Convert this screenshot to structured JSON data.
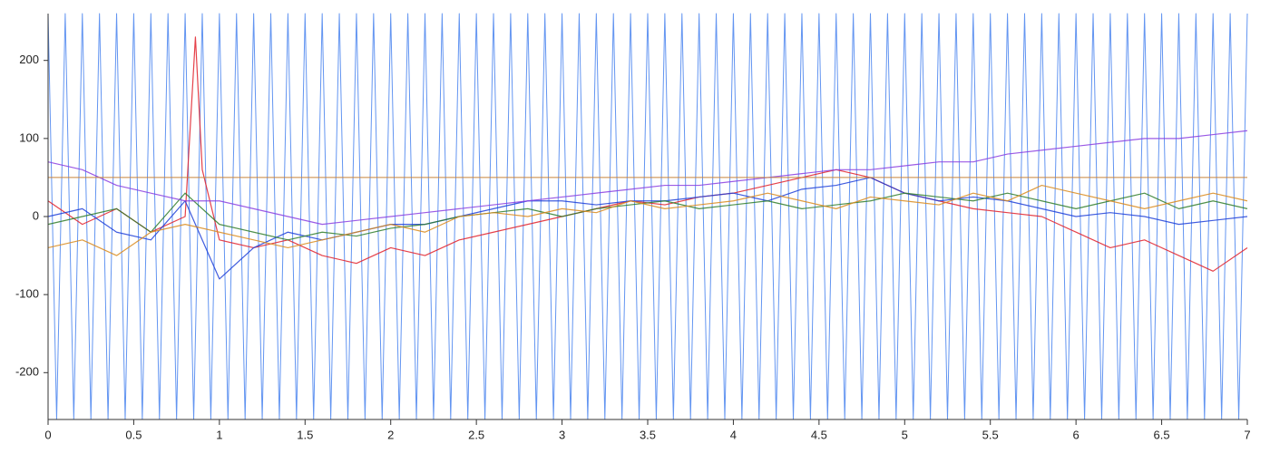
{
  "chart_data": {
    "type": "line",
    "xlim": [
      0,
      7
    ],
    "ylim": [
      -260,
      260
    ],
    "xticks": [
      0,
      0.5,
      1,
      1.5,
      2,
      2.5,
      3,
      3.5,
      4,
      4.5,
      5,
      5.5,
      6,
      6.5,
      7
    ],
    "yticks": [
      -200,
      -100,
      0,
      100,
      200
    ],
    "reference_line": {
      "value": 50,
      "color": "#c8843c"
    },
    "series": [
      {
        "color": "#5b8ff0",
        "x": [
          0,
          0.05,
          0.1,
          0.15,
          0.2,
          0.25,
          0.3,
          0.35,
          0.4,
          0.45,
          0.5,
          0.55,
          0.6,
          0.65,
          0.7,
          0.75,
          0.8,
          0.85,
          0.9,
          0.95,
          1,
          1.05,
          1.1,
          1.15,
          1.2,
          1.25,
          1.3,
          1.35,
          1.4,
          1.45,
          1.5,
          1.55,
          1.6,
          1.65,
          1.7,
          1.75,
          1.8,
          1.85,
          1.9,
          1.95,
          2,
          2.05,
          2.1,
          2.15,
          2.2,
          2.25,
          2.3,
          2.35,
          2.4,
          2.45,
          2.5,
          2.55,
          2.6,
          2.65,
          2.7,
          2.75,
          2.8,
          2.85,
          2.9,
          2.95,
          3,
          3.05,
          3.1,
          3.15,
          3.2,
          3.25,
          3.3,
          3.35,
          3.4,
          3.45,
          3.5,
          3.55,
          3.6,
          3.65,
          3.7,
          3.75,
          3.8,
          3.85,
          3.9,
          3.95,
          4,
          4.05,
          4.1,
          4.15,
          4.2,
          4.25,
          4.3,
          4.35,
          4.4,
          4.45,
          4.5,
          4.55,
          4.6,
          4.65,
          4.7,
          4.75,
          4.8,
          4.85,
          4.9,
          4.95,
          5,
          5.05,
          5.1,
          5.15,
          5.2,
          5.25,
          5.3,
          5.35,
          5.4,
          5.45,
          5.5,
          5.55,
          5.6,
          5.65,
          5.7,
          5.75,
          5.8,
          5.85,
          5.9,
          5.95,
          6,
          6.05,
          6.1,
          6.15,
          6.2,
          6.25,
          6.3,
          6.35,
          6.4,
          6.45,
          6.5,
          6.55,
          6.6,
          6.65,
          6.7,
          6.75,
          6.8,
          6.85,
          6.9,
          6.95,
          7
        ],
        "values": [
          260,
          -260,
          260,
          -260,
          260,
          -260,
          260,
          -260,
          260,
          -260,
          260,
          -260,
          260,
          -260,
          260,
          -260,
          260,
          -260,
          260,
          -260,
          260,
          -260,
          260,
          -260,
          260,
          -260,
          260,
          -260,
          260,
          -260,
          260,
          -260,
          260,
          -260,
          260,
          -260,
          260,
          -260,
          260,
          -260,
          260,
          -260,
          260,
          -260,
          260,
          -260,
          260,
          -260,
          260,
          -260,
          260,
          -260,
          260,
          -260,
          260,
          -260,
          260,
          -260,
          260,
          -260,
          260,
          -260,
          260,
          -260,
          260,
          -260,
          260,
          -260,
          260,
          -260,
          260,
          -260,
          260,
          -260,
          260,
          -260,
          260,
          -260,
          260,
          -260,
          260,
          -260,
          260,
          -260,
          260,
          -260,
          260,
          -260,
          260,
          -260,
          260,
          -260,
          260,
          -260,
          260,
          -260,
          260,
          -260,
          260,
          -260,
          260,
          -260,
          260,
          -260,
          260,
          -260,
          260,
          -260,
          260,
          -260,
          260,
          -260,
          260,
          -260,
          260,
          -260,
          260,
          -260,
          260,
          -260,
          260,
          -260,
          260,
          -260,
          260,
          -260,
          260,
          -260,
          260,
          -260,
          260,
          -260,
          260,
          -260,
          260,
          -260,
          260,
          -260,
          260,
          -260,
          260
        ]
      },
      {
        "color": "#e0202a",
        "x": [
          0,
          0.2,
          0.4,
          0.6,
          0.8,
          0.86,
          0.9,
          1,
          1.2,
          1.4,
          1.6,
          1.8,
          2,
          2.2,
          2.4,
          2.6,
          2.8,
          3,
          3.2,
          3.4,
          3.6,
          3.8,
          4,
          4.2,
          4.4,
          4.6,
          4.8,
          5,
          5.2,
          5.4,
          5.6,
          5.8,
          6,
          6.2,
          6.4,
          6.6,
          6.8,
          7
        ],
        "values": [
          20,
          -10,
          10,
          -20,
          0,
          230,
          60,
          -30,
          -40,
          -30,
          -50,
          -60,
          -40,
          -50,
          -30,
          -20,
          -10,
          0,
          10,
          20,
          15,
          25,
          30,
          40,
          50,
          60,
          50,
          30,
          20,
          10,
          5,
          0,
          -20,
          -40,
          -30,
          -50,
          -70,
          -40
        ]
      },
      {
        "color": "#1f3fd8",
        "x": [
          0,
          0.2,
          0.4,
          0.6,
          0.8,
          1,
          1.2,
          1.4,
          1.6,
          1.8,
          2,
          2.2,
          2.4,
          2.6,
          2.8,
          3,
          3.2,
          3.4,
          3.6,
          3.8,
          4,
          4.2,
          4.4,
          4.6,
          4.8,
          5,
          5.2,
          5.4,
          5.6,
          5.8,
          6,
          6.2,
          6.4,
          6.6,
          6.8,
          7
        ],
        "values": [
          0,
          10,
          -20,
          -30,
          20,
          -80,
          -40,
          -20,
          -30,
          -20,
          -10,
          -10,
          0,
          10,
          20,
          20,
          15,
          20,
          20,
          25,
          30,
          20,
          35,
          40,
          50,
          30,
          20,
          25,
          20,
          10,
          0,
          5,
          0,
          -10,
          -5,
          0
        ]
      },
      {
        "color": "#2f7d2a",
        "x": [
          0,
          0.2,
          0.4,
          0.6,
          0.8,
          1,
          1.2,
          1.4,
          1.6,
          1.8,
          2,
          2.2,
          2.4,
          2.6,
          2.8,
          3,
          3.2,
          3.4,
          3.6,
          3.8,
          4,
          4.2,
          4.4,
          4.6,
          4.8,
          5,
          5.2,
          5.4,
          5.6,
          5.8,
          6,
          6.2,
          6.4,
          6.6,
          6.8,
          7
        ],
        "values": [
          -10,
          0,
          10,
          -20,
          30,
          -10,
          -20,
          -30,
          -20,
          -25,
          -15,
          -10,
          0,
          5,
          10,
          0,
          10,
          15,
          20,
          10,
          15,
          20,
          10,
          15,
          20,
          30,
          25,
          20,
          30,
          20,
          10,
          20,
          30,
          10,
          20,
          10
        ]
      },
      {
        "color": "#8a3ee0",
        "x": [
          0,
          0.2,
          0.4,
          0.6,
          0.8,
          1,
          1.2,
          1.4,
          1.6,
          1.8,
          2,
          2.2,
          2.4,
          2.6,
          2.8,
          3,
          3.2,
          3.4,
          3.6,
          3.8,
          4,
          4.2,
          4.4,
          4.6,
          4.8,
          5,
          5.2,
          5.4,
          5.6,
          5.8,
          6,
          6.2,
          6.4,
          6.6,
          6.8,
          7
        ],
        "values": [
          70,
          60,
          40,
          30,
          20,
          20,
          10,
          0,
          -10,
          -5,
          0,
          5,
          10,
          15,
          20,
          25,
          30,
          35,
          40,
          40,
          45,
          50,
          55,
          60,
          60,
          65,
          70,
          70,
          80,
          85,
          90,
          95,
          100,
          100,
          105,
          110
        ]
      },
      {
        "color": "#d98a1c",
        "x": [
          0,
          0.2,
          0.4,
          0.6,
          0.8,
          1,
          1.2,
          1.4,
          1.6,
          1.8,
          2,
          2.2,
          2.4,
          2.6,
          2.8,
          3,
          3.2,
          3.4,
          3.6,
          3.8,
          4,
          4.2,
          4.4,
          4.6,
          4.8,
          5,
          5.2,
          5.4,
          5.6,
          5.8,
          6,
          6.2,
          6.4,
          6.6,
          6.8,
          7
        ],
        "values": [
          -40,
          -30,
          -50,
          -20,
          -10,
          -20,
          -30,
          -40,
          -30,
          -20,
          -10,
          -20,
          0,
          5,
          0,
          10,
          5,
          20,
          10,
          15,
          20,
          30,
          20,
          10,
          25,
          20,
          15,
          30,
          20,
          40,
          30,
          20,
          10,
          20,
          30,
          20
        ]
      }
    ]
  }
}
